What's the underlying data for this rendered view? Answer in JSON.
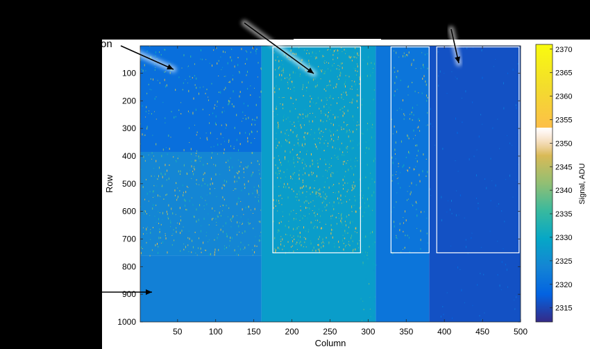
{
  "chart_data": {
    "type": "heatmap",
    "xlabel": "Column",
    "ylabel": "Row",
    "xlim": [
      1,
      500
    ],
    "ylim": [
      1,
      1000
    ],
    "y_reversed": true,
    "x_ticks": [
      50,
      100,
      150,
      200,
      250,
      300,
      350,
      400,
      450,
      500
    ],
    "y_ticks": [
      100,
      200,
      300,
      400,
      500,
      600,
      700,
      800,
      900,
      1000
    ],
    "colorbar": {
      "label": "Signal, ADU",
      "range": [
        2312,
        2371
      ],
      "ticks": [
        2315,
        2320,
        2325,
        2330,
        2335,
        2340,
        2345,
        2350,
        2355,
        2360,
        2365,
        2370
      ],
      "colormap": "parula"
    },
    "regions": [
      {
        "x": [
          1,
          160
        ],
        "y": [
          1,
          385
        ],
        "mean_signal": 2320
      },
      {
        "x": [
          1,
          160
        ],
        "y": [
          385,
          760
        ],
        "mean_signal": 2324
      },
      {
        "x": [
          1,
          160
        ],
        "y": [
          760,
          1000
        ],
        "mean_signal": 2323
      },
      {
        "x": [
          160,
          310
        ],
        "y": [
          1,
          1000
        ],
        "mean_signal": 2328
      },
      {
        "x": [
          310,
          380
        ],
        "y": [
          1,
          1000
        ],
        "mean_signal": 2321
      },
      {
        "x": [
          380,
          500
        ],
        "y": [
          1,
          1000
        ],
        "mean_signal": 2316
      }
    ],
    "rectangles": [
      {
        "x": [
          175,
          290
        ],
        "y": [
          5,
          750
        ]
      },
      {
        "x": [
          330,
          380
        ],
        "y": [
          5,
          750
        ]
      },
      {
        "x": [
          390,
          498
        ],
        "y": [
          5,
          750
        ]
      }
    ]
  },
  "annotations": {
    "truncated_text": "on"
  },
  "colors": {
    "background": "#000000",
    "panel": "#ffffff",
    "rect_outline": "#ffffff",
    "arrow": "#000000",
    "arrow_glow": "#ffffff"
  }
}
